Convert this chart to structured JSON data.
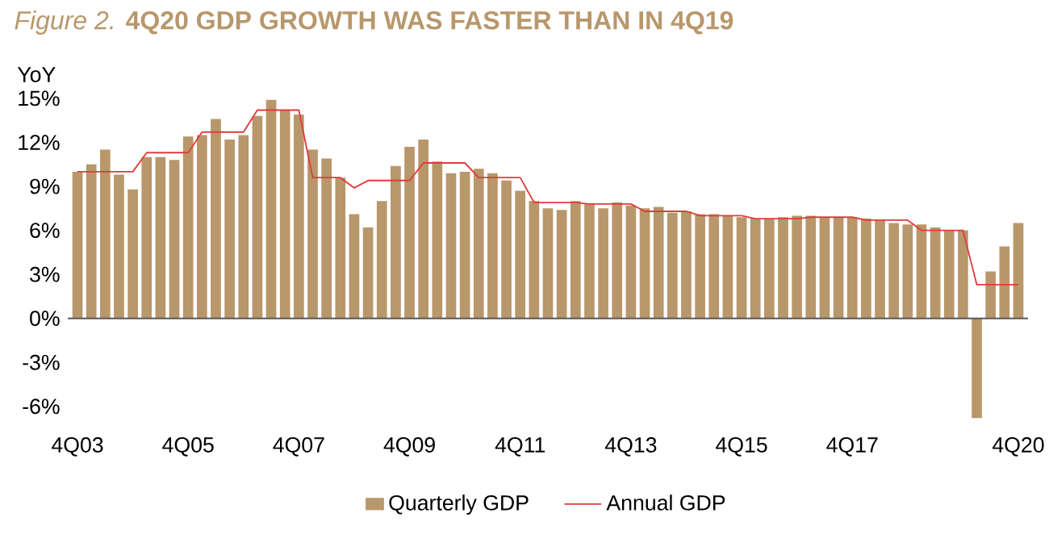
{
  "chart_data": {
    "type": "bar",
    "title": "*Figure 2.* **4Q20 GDP GROWTH WAS FASTER THAN IN 4Q19**",
    "ylabel": "YoY",
    "categories": [
      "4Q03",
      null,
      null,
      null,
      null,
      null,
      null,
      null,
      "4Q05",
      null,
      null,
      null,
      null,
      null,
      null,
      null,
      "4Q07",
      null,
      null,
      null,
      null,
      null,
      null,
      null,
      "4Q09",
      null,
      null,
      null,
      null,
      null,
      null,
      null,
      "4Q11",
      null,
      null,
      null,
      null,
      null,
      null,
      null,
      "4Q13",
      null,
      null,
      null,
      null,
      null,
      null,
      null,
      "4Q15",
      null,
      null,
      null,
      null,
      null,
      null,
      null,
      "4Q17",
      null,
      null,
      null,
      null,
      null,
      null,
      null,
      null,
      null,
      null,
      null,
      "4Q20"
    ],
    "series": [
      {
        "name": "Quarterly GDP",
        "color": "#b8976b",
        "values": [
          10.0,
          10.5,
          11.5,
          9.8,
          8.8,
          11.0,
          11.0,
          10.8,
          12.4,
          12.5,
          13.6,
          12.2,
          12.5,
          13.8,
          14.9,
          14.2,
          13.9,
          11.5,
          10.9,
          9.6,
          7.1,
          6.2,
          8.0,
          10.4,
          11.7,
          12.2,
          10.7,
          9.9,
          10.0,
          10.2,
          9.9,
          9.4,
          8.7,
          8.0,
          7.5,
          7.4,
          8.0,
          7.8,
          7.5,
          7.9,
          7.7,
          7.5,
          7.6,
          7.2,
          7.3,
          7.1,
          7.1,
          7.0,
          6.9,
          6.8,
          6.8,
          6.9,
          7.0,
          7.0,
          6.9,
          6.9,
          6.9,
          6.8,
          6.7,
          6.5,
          6.4,
          6.4,
          6.2,
          6.0,
          6.0,
          -6.8,
          3.2,
          4.9,
          6.5
        ]
      },
      {
        "name": "Annual GDP",
        "type": "line",
        "color": "#e03c3c",
        "values": [
          10.0,
          10.0,
          10.0,
          10.0,
          10.0,
          11.3,
          11.3,
          11.3,
          11.3,
          12.7,
          12.7,
          12.7,
          12.7,
          14.2,
          14.2,
          14.2,
          14.2,
          9.6,
          9.6,
          9.6,
          8.9,
          9.4,
          9.4,
          9.4,
          9.4,
          10.6,
          10.6,
          10.6,
          10.6,
          9.6,
          9.6,
          9.6,
          9.6,
          7.9,
          7.9,
          7.9,
          7.9,
          7.8,
          7.8,
          7.8,
          7.8,
          7.3,
          7.3,
          7.3,
          7.3,
          7.0,
          7.0,
          7.0,
          7.0,
          6.8,
          6.8,
          6.8,
          6.8,
          6.9,
          6.9,
          6.9,
          6.9,
          6.7,
          6.7,
          6.7,
          6.7,
          6.0,
          6.0,
          6.0,
          6.0,
          2.3,
          2.3,
          2.3,
          2.3
        ]
      }
    ],
    "ylim": [
      -7,
      15
    ],
    "yticks": [
      {
        "value": -6,
        "label": "-6%"
      },
      {
        "value": -3,
        "label": "-3%"
      },
      {
        "value": 0,
        "label": "0%"
      },
      {
        "value": 3,
        "label": "3%"
      },
      {
        "value": 6,
        "label": "6%"
      },
      {
        "value": 9,
        "label": "9%"
      },
      {
        "value": 12,
        "label": "12%"
      },
      {
        "value": 15,
        "label": "15%"
      }
    ],
    "legend": "bottom",
    "marker": "none"
  }
}
